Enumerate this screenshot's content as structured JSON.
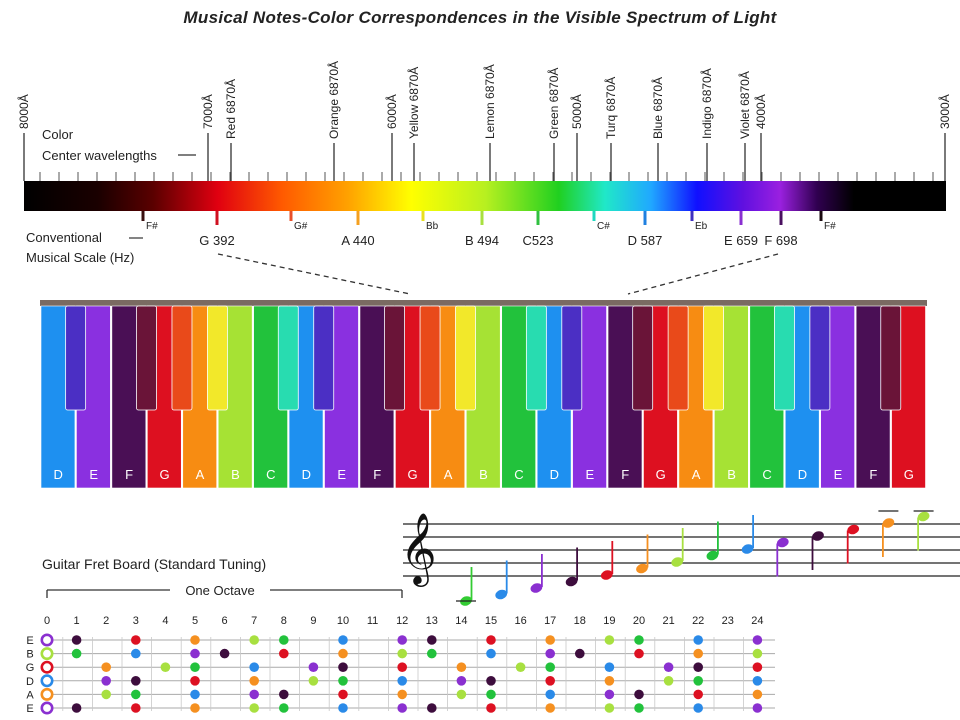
{
  "title": "Musical Notes-Color Correspondences in the Visible Spectrum of Light",
  "spectrum": {
    "color_label": "Color",
    "center_label": "Center wavelengths",
    "scale_label_1": "Conventional",
    "scale_label_2": "Musical Scale (Hz)",
    "wavelength_marks": [
      {
        "label": "8000Å",
        "type": "boundary"
      },
      {
        "label": "7000Å",
        "type": "boundary"
      },
      {
        "label": "Red 6870Å",
        "type": "center"
      },
      {
        "label": "Orange 6870Å",
        "type": "center"
      },
      {
        "label": "6000Å",
        "type": "boundary"
      },
      {
        "label": "Yellow 6870Å",
        "type": "center"
      },
      {
        "label": "Lemon 6870Å",
        "type": "center"
      },
      {
        "label": "Green 6870Å",
        "type": "center"
      },
      {
        "label": "5000Å",
        "type": "boundary"
      },
      {
        "label": "Turq 6870Å",
        "type": "center"
      },
      {
        "label": "Blue 6870Å",
        "type": "center"
      },
      {
        "label": "Indigo 6870Å",
        "type": "center"
      },
      {
        "label": "Violet 6870Å",
        "type": "center"
      },
      {
        "label": "4000Å",
        "type": "boundary"
      },
      {
        "label": "3000Å",
        "type": "boundary"
      }
    ],
    "notes": [
      {
        "label": "F#",
        "sharp": true,
        "color": "#3a1010"
      },
      {
        "label": "G 392",
        "sharp": false,
        "color": "#d01020"
      },
      {
        "label": "G#",
        "sharp": true,
        "color": "#e8502a"
      },
      {
        "label": "A 440",
        "sharp": false,
        "color": "#f4a020"
      },
      {
        "label": "Bb",
        "sharp": true,
        "color": "#e8e020"
      },
      {
        "label": "B 494",
        "sharp": false,
        "color": "#a8e040"
      },
      {
        "label": "C523",
        "sharp": false,
        "color": "#30c040"
      },
      {
        "label": "C#",
        "sharp": true,
        "color": "#20d8c0"
      },
      {
        "label": "D 587",
        "sharp": false,
        "color": "#2080e0"
      },
      {
        "label": "Eb",
        "sharp": true,
        "color": "#4030c0"
      },
      {
        "label": "E 659",
        "sharp": false,
        "color": "#8a30d0"
      },
      {
        "label": "F 698",
        "sharp": false,
        "color": "#4a1060"
      },
      {
        "label": "F#",
        "sharp": true,
        "color": "#1a0a10"
      }
    ]
  },
  "piano": {
    "white_keys": [
      {
        "label": "D",
        "color": "#1e90f0"
      },
      {
        "label": "E",
        "color": "#8a30e0"
      },
      {
        "label": "F",
        "color": "#4a0f55"
      },
      {
        "label": "G",
        "color": "#dd1020"
      },
      {
        "label": "A",
        "color": "#f78c12"
      },
      {
        "label": "B",
        "color": "#a6e234"
      },
      {
        "label": "C",
        "color": "#22c23c"
      },
      {
        "label": "D",
        "color": "#1e90f0"
      },
      {
        "label": "E",
        "color": "#8a30e0"
      },
      {
        "label": "F",
        "color": "#4a0f55"
      },
      {
        "label": "G",
        "color": "#dd1020"
      },
      {
        "label": "A",
        "color": "#f78c12"
      },
      {
        "label": "B",
        "color": "#a6e234"
      },
      {
        "label": "C",
        "color": "#22c23c"
      },
      {
        "label": "D",
        "color": "#1e90f0"
      },
      {
        "label": "E",
        "color": "#8a30e0"
      },
      {
        "label": "F",
        "color": "#4a0f55"
      },
      {
        "label": "G",
        "color": "#dd1020"
      },
      {
        "label": "A",
        "color": "#f78c12"
      },
      {
        "label": "B",
        "color": "#a6e234"
      },
      {
        "label": "C",
        "color": "#22c23c"
      },
      {
        "label": "D",
        "color": "#1e90f0"
      },
      {
        "label": "E",
        "color": "#8a30e0"
      },
      {
        "label": "F",
        "color": "#4a0f55"
      },
      {
        "label": "G",
        "color": "#dd1020"
      }
    ],
    "black_keys": [
      {
        "after": 0,
        "color": "#4b2fc4"
      },
      {
        "after": 2,
        "color": "#6a1438"
      },
      {
        "after": 3,
        "color": "#e94a1a"
      },
      {
        "after": 4,
        "color": "#f2e82a"
      },
      {
        "after": 6,
        "color": "#28dcb0"
      },
      {
        "after": 7,
        "color": "#4b2fc4"
      },
      {
        "after": 9,
        "color": "#6a1438"
      },
      {
        "after": 10,
        "color": "#e94a1a"
      },
      {
        "after": 11,
        "color": "#f2e82a"
      },
      {
        "after": 13,
        "color": "#28dcb0"
      },
      {
        "after": 14,
        "color": "#4b2fc4"
      },
      {
        "after": 16,
        "color": "#6a1438"
      },
      {
        "after": 17,
        "color": "#e94a1a"
      },
      {
        "after": 18,
        "color": "#f2e82a"
      },
      {
        "after": 20,
        "color": "#28dcb0"
      },
      {
        "after": 21,
        "color": "#4b2fc4"
      },
      {
        "after": 23,
        "color": "#6a1438"
      }
    ]
  },
  "staff_notes": [
    {
      "step": 0,
      "color": "#33cc33"
    },
    {
      "step": 1,
      "color": "#2a8ae8"
    },
    {
      "step": 2,
      "color": "#8a2fd0"
    },
    {
      "step": 3,
      "color": "#3d0d3d"
    },
    {
      "step": 4,
      "color": "#dd1122"
    },
    {
      "step": 5,
      "color": "#f59020"
    },
    {
      "step": 6,
      "color": "#a8e040"
    },
    {
      "step": 7,
      "color": "#22c23c"
    },
    {
      "step": 8,
      "color": "#2a8ae8"
    },
    {
      "step": 9,
      "color": "#8a2fd0"
    },
    {
      "step": 10,
      "color": "#3d0d3d"
    },
    {
      "step": 11,
      "color": "#dd1122"
    },
    {
      "step": 12,
      "color": "#f59020"
    },
    {
      "step": 13,
      "color": "#a8e040"
    }
  ],
  "fretboard": {
    "title": "Guitar Fret Board (Standard Tuning)",
    "octave_label": "One Octave",
    "frets": [
      "0",
      "1",
      "2",
      "3",
      "4",
      "5",
      "6",
      "7",
      "8",
      "9",
      "10",
      "11",
      "12",
      "13",
      "14",
      "15",
      "16",
      "17",
      "18",
      "19",
      "20",
      "21",
      "22",
      "23",
      "24"
    ],
    "strings": [
      "E",
      "B",
      "G",
      "D",
      "A",
      "E"
    ],
    "dot_colors": [
      [
        "#8a30d0",
        "#3d0d3d",
        null,
        "#dd1122",
        null,
        "#f59020",
        null,
        "#a8e040",
        "#22c23c",
        null,
        "#2a8ae8",
        null,
        "#8a30d0",
        "#3d0d3d",
        null,
        "#dd1122",
        null,
        "#f59020",
        null,
        "#a8e040",
        "#22c23c",
        null,
        "#2a8ae8",
        null,
        "#8a30d0"
      ],
      [
        "#a8e040",
        "#22c23c",
        null,
        "#2a8ae8",
        null,
        "#8a30d0",
        "#3d0d3d",
        null,
        "#dd1122",
        null,
        "#f59020",
        null,
        "#a8e040",
        "#22c23c",
        null,
        "#2a8ae8",
        null,
        "#8a30d0",
        "#3d0d3d",
        null,
        "#dd1122",
        null,
        "#f59020",
        null,
        "#a8e040"
      ],
      [
        "#dd1122",
        null,
        "#f59020",
        null,
        "#a8e040",
        "#22c23c",
        null,
        "#2a8ae8",
        null,
        "#8a30d0",
        "#3d0d3d",
        null,
        "#dd1122",
        null,
        "#f59020",
        null,
        "#a8e040",
        "#22c23c",
        null,
        "#2a8ae8",
        null,
        "#8a30d0",
        "#3d0d3d",
        null,
        "#dd1122"
      ],
      [
        "#2a8ae8",
        null,
        "#8a30d0",
        "#3d0d3d",
        null,
        "#dd1122",
        null,
        "#f59020",
        null,
        "#a8e040",
        "#22c23c",
        null,
        "#2a8ae8",
        null,
        "#8a30d0",
        "#3d0d3d",
        null,
        "#dd1122",
        null,
        "#f59020",
        null,
        "#a8e040",
        "#22c23c",
        null,
        "#2a8ae8"
      ],
      [
        "#f59020",
        null,
        "#a8e040",
        "#22c23c",
        null,
        "#2a8ae8",
        null,
        "#8a30d0",
        "#3d0d3d",
        null,
        "#dd1122",
        null,
        "#f59020",
        null,
        "#a8e040",
        "#22c23c",
        null,
        "#2a8ae8",
        null,
        "#8a30d0",
        "#3d0d3d",
        null,
        "#dd1122",
        null,
        "#f59020"
      ],
      [
        "#8a30d0",
        "#3d0d3d",
        null,
        "#dd1122",
        null,
        "#f59020",
        null,
        "#a8e040",
        "#22c23c",
        null,
        "#2a8ae8",
        null,
        "#8a30d0",
        "#3d0d3d",
        null,
        "#dd1122",
        null,
        "#f59020",
        null,
        "#a8e040",
        "#22c23c",
        null,
        "#2a8ae8",
        null,
        "#8a30d0"
      ]
    ]
  }
}
